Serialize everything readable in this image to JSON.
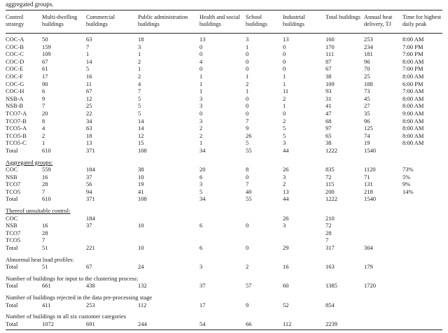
{
  "caption_fragment": "aggregated groups.",
  "colors": {
    "text": "#1b1b1b",
    "rule": "#2a2a2a",
    "background": "#ffffff"
  },
  "table": {
    "columns": [
      "Control strategy",
      "Multi-dwelling buildings",
      "Commercial buildings",
      "Public administration buildings",
      "Health and social buildings",
      "School buildings",
      "Industrial buildings",
      "Total buildings",
      "Annual heat delivery, TJ",
      "Time for highest daily peak"
    ],
    "sections": [
      {
        "header": null,
        "underline": false,
        "rows": [
          [
            "COC-A",
            "50",
            "63",
            "18",
            "13",
            "3",
            "13",
            "160",
            "253",
            "8:00 AM"
          ],
          [
            "COC-B",
            "159",
            "7",
            "3",
            "0",
            "1",
            "0",
            "170",
            "234",
            "7:00 PM"
          ],
          [
            "COC-C",
            "109",
            "1",
            "1",
            "0",
            "0",
            "0",
            "111",
            "181",
            "7:00 PM"
          ],
          [
            "COC-D",
            "67",
            "14",
            "2",
            "4",
            "0",
            "0",
            "87",
            "96",
            "8:00 AM"
          ],
          [
            "COC-E",
            "61",
            "5",
            "1",
            "0",
            "0",
            "0",
            "67",
            "70",
            "7:00 PM"
          ],
          [
            "COC-F",
            "17",
            "16",
            "2",
            "1",
            "1",
            "1",
            "38",
            "25",
            "8:00 AM"
          ],
          [
            "COC-G",
            "90",
            "11",
            "4",
            "1",
            "2",
            "1",
            "109",
            "188",
            "6:00 PM"
          ],
          [
            "COC-H",
            "6",
            "67",
            "7",
            "1",
            "1",
            "11",
            "93",
            "73",
            "7:00 AM"
          ],
          [
            "NSB-A",
            "9",
            "12",
            "5",
            "3",
            "0",
            "2",
            "31",
            "45",
            "8:00 AM"
          ],
          [
            "NSB-B",
            "7",
            "25",
            "5",
            "3",
            "0",
            "1",
            "41",
            "27",
            "8:00 AM"
          ],
          [
            "TCO7-A",
            "20",
            "22",
            "5",
            "0",
            "0",
            "0",
            "47",
            "35",
            "9:00 AM"
          ],
          [
            "TCO7-B",
            "8",
            "34",
            "14",
            "3",
            "7",
            "2",
            "68",
            "96",
            "8:00 AM"
          ],
          [
            "TCO5-A",
            "4",
            "63",
            "14",
            "2",
            "9",
            "5",
            "97",
            "125",
            "8:00 AM"
          ],
          [
            "TCO5-B",
            "2",
            "18",
            "12",
            "2",
            "26",
            "5",
            "65",
            "74",
            "8:00 AM"
          ],
          [
            "TCO5-C",
            "1",
            "13",
            "15",
            "1",
            "5",
            "3",
            "38",
            "19",
            "8:00 AM"
          ],
          [
            "Total",
            "610",
            "371",
            "108",
            "34",
            "55",
            "44",
            "1222",
            "1540",
            ""
          ]
        ]
      },
      {
        "header": "Aggregated groups:",
        "underline": true,
        "rows": [
          [
            "COC",
            "559",
            "184",
            "38",
            "20",
            "8",
            "26",
            "835",
            "1120",
            "73%"
          ],
          [
            "NSB",
            "16",
            "37",
            "10",
            "6",
            "0",
            "3",
            "72",
            "71",
            "5%"
          ],
          [
            "TCO7",
            "28",
            "56",
            "19",
            "3",
            "7",
            "2",
            "115",
            "131",
            "9%"
          ],
          [
            "TCO5",
            "7",
            "94",
            "41",
            "5",
            "40",
            "13",
            "200",
            "218",
            "14%"
          ],
          [
            "Total",
            "610",
            "371",
            "108",
            "34",
            "55",
            "44",
            "1222",
            "1540",
            ""
          ]
        ]
      },
      {
        "header": "Thereof unsuitable control:",
        "underline": true,
        "rows": [
          [
            "COC",
            "",
            "184",
            "",
            "",
            "",
            "26",
            "210",
            "",
            ""
          ],
          [
            "NSB",
            "16",
            "37",
            "10",
            "6",
            "0",
            "3",
            "72",
            "",
            ""
          ],
          [
            "TCO7",
            "28",
            "",
            "",
            "",
            "",
            "",
            "28",
            "",
            ""
          ],
          [
            "TCO5",
            "7",
            "",
            "",
            "",
            "",
            "",
            "7",
            "",
            ""
          ],
          [
            "Total",
            "51",
            "221",
            "10",
            "6",
            "0",
            "29",
            "317",
            "304",
            ""
          ]
        ]
      },
      {
        "header": "Abnormal heat load profiles:",
        "underline": false,
        "rows": [
          [
            "Total",
            "51",
            "67",
            "24",
            "3",
            "2",
            "16",
            "163",
            "179",
            ""
          ]
        ]
      },
      {
        "header": "Number of buildings for input to the clustering process:",
        "underline": false,
        "rows": [
          [
            "Total",
            "661",
            "438",
            "132",
            "37",
            "57",
            "60",
            "1385",
            "1720",
            ""
          ]
        ]
      },
      {
        "header": "Number of buildings rejected in the data pre-processing stage",
        "underline": false,
        "rows": [
          [
            "Total",
            "411",
            "253",
            "112",
            "17",
            "9",
            "52",
            "854",
            "",
            ""
          ]
        ]
      },
      {
        "header": "Number of buildings in all six customer categories",
        "underline": false,
        "rows": [
          [
            "Total",
            "1072",
            "691",
            "244",
            "54",
            "66",
            "112",
            "2239",
            "",
            ""
          ]
        ]
      }
    ]
  }
}
